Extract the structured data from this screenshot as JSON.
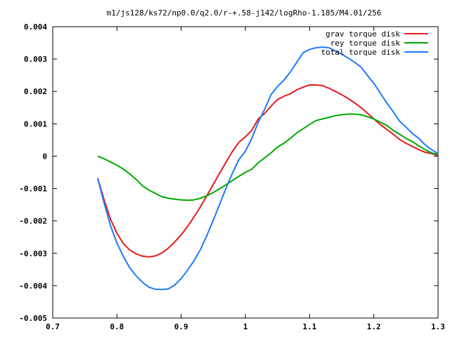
{
  "chart_data": {
    "type": "line",
    "title": "m1/js128/ks72/np0.0/q2.0/r-+.58-j142/logRho-1.185/M4.01/256",
    "xlabel": "",
    "ylabel": "",
    "xlim": [
      0.7,
      1.3
    ],
    "ylim": [
      -0.005,
      0.004
    ],
    "x_ticks": [
      "0.7",
      "0.8",
      "0.9",
      "1",
      "1.1",
      "1.2",
      "1.3"
    ],
    "y_ticks": [
      "0.004",
      "0.003",
      "0.002",
      "0.001",
      "0",
      "-0.001",
      "-0.002",
      "-0.003",
      "-0.004",
      "-0.005"
    ],
    "grid": false,
    "legend_position": "top-right",
    "series": [
      {
        "name": "grav torque disk",
        "color": "#e41a1c",
        "points": [
          [
            0.77,
            -0.00068
          ],
          [
            0.78,
            -0.00135
          ],
          [
            0.79,
            -0.00195
          ],
          [
            0.8,
            -0.00238
          ],
          [
            0.81,
            -0.0027
          ],
          [
            0.82,
            -0.0029
          ],
          [
            0.83,
            -0.00302
          ],
          [
            0.84,
            -0.00309
          ],
          [
            0.85,
            -0.00311
          ],
          [
            0.86,
            -0.00308
          ],
          [
            0.87,
            -0.00299
          ],
          [
            0.88,
            -0.00284
          ],
          [
            0.89,
            -0.00265
          ],
          [
            0.9,
            -0.00243
          ],
          [
            0.91,
            -0.00217
          ],
          [
            0.92,
            -0.00188
          ],
          [
            0.93,
            -0.00156
          ],
          [
            0.94,
            -0.00122
          ],
          [
            0.95,
            -0.00087
          ],
          [
            0.96,
            -0.00052
          ],
          [
            0.97,
            -0.00018
          ],
          [
            0.98,
            0.00015
          ],
          [
            0.99,
            0.00043
          ],
          [
            1.0,
            0.0006
          ],
          [
            1.01,
            0.0008
          ],
          [
            1.02,
            0.00115
          ],
          [
            1.03,
            0.00132
          ],
          [
            1.04,
            0.00155
          ],
          [
            1.05,
            0.00175
          ],
          [
            1.06,
            0.00185
          ],
          [
            1.07,
            0.00193
          ],
          [
            1.08,
            0.00205
          ],
          [
            1.09,
            0.00213
          ],
          [
            1.1,
            0.0022
          ],
          [
            1.11,
            0.0022
          ],
          [
            1.12,
            0.00218
          ],
          [
            1.13,
            0.0021
          ],
          [
            1.14,
            0.002
          ],
          [
            1.15,
            0.0019
          ],
          [
            1.16,
            0.00178
          ],
          [
            1.17,
            0.00165
          ],
          [
            1.18,
            0.0015
          ],
          [
            1.19,
            0.00133
          ],
          [
            1.2,
            0.00115
          ],
          [
            1.21,
            0.00098
          ],
          [
            1.22,
            0.00083
          ],
          [
            1.23,
            0.00068
          ],
          [
            1.24,
            0.00052
          ],
          [
            1.25,
            0.0004
          ],
          [
            1.26,
            0.0003
          ],
          [
            1.27,
            0.0002
          ],
          [
            1.28,
            0.00012
          ],
          [
            1.29,
            8e-05
          ],
          [
            1.3,
            2e-05
          ]
        ]
      },
      {
        "name": "rey torque disk",
        "color": "#00aa00",
        "points": [
          [
            0.77,
            0.0
          ],
          [
            0.78,
            -8e-05
          ],
          [
            0.79,
            -0.00018
          ],
          [
            0.8,
            -0.00028
          ],
          [
            0.81,
            -0.0004
          ],
          [
            0.82,
            -0.00055
          ],
          [
            0.83,
            -0.00072
          ],
          [
            0.84,
            -0.00092
          ],
          [
            0.85,
            -0.00105
          ],
          [
            0.86,
            -0.00115
          ],
          [
            0.87,
            -0.00125
          ],
          [
            0.88,
            -0.0013
          ],
          [
            0.89,
            -0.00133
          ],
          [
            0.9,
            -0.00135
          ],
          [
            0.91,
            -0.00136
          ],
          [
            0.92,
            -0.00135
          ],
          [
            0.93,
            -0.0013
          ],
          [
            0.94,
            -0.00122
          ],
          [
            0.95,
            -0.00112
          ],
          [
            0.96,
            -0.001
          ],
          [
            0.97,
            -0.00088
          ],
          [
            0.98,
            -0.00075
          ],
          [
            0.99,
            -0.00062
          ],
          [
            1.0,
            -0.0005
          ],
          [
            1.01,
            -0.0004
          ],
          [
            1.02,
            -0.0002
          ],
          [
            1.03,
            -5e-05
          ],
          [
            1.04,
            0.0001
          ],
          [
            1.05,
            0.00028
          ],
          [
            1.06,
            0.0004
          ],
          [
            1.07,
            0.00055
          ],
          [
            1.08,
            0.00072
          ],
          [
            1.09,
            0.00085
          ],
          [
            1.1,
            0.00098
          ],
          [
            1.11,
            0.0011
          ],
          [
            1.12,
            0.00115
          ],
          [
            1.13,
            0.0012
          ],
          [
            1.14,
            0.00125
          ],
          [
            1.15,
            0.00128
          ],
          [
            1.16,
            0.0013
          ],
          [
            1.17,
            0.0013
          ],
          [
            1.18,
            0.00128
          ],
          [
            1.19,
            0.00122
          ],
          [
            1.2,
            0.00115
          ],
          [
            1.21,
            0.00105
          ],
          [
            1.22,
            0.00095
          ],
          [
            1.23,
            0.0008
          ],
          [
            1.24,
            0.00068
          ],
          [
            1.25,
            0.00055
          ],
          [
            1.26,
            0.00045
          ],
          [
            1.27,
            0.00032
          ],
          [
            1.28,
            0.0002
          ],
          [
            1.29,
            0.0001
          ],
          [
            1.3,
            5e-05
          ]
        ]
      },
      {
        "name": "total torque disk",
        "color": "#1f78ff",
        "points": [
          [
            0.77,
            -0.00068
          ],
          [
            0.78,
            -0.00145
          ],
          [
            0.79,
            -0.00215
          ],
          [
            0.8,
            -0.00268
          ],
          [
            0.81,
            -0.0031
          ],
          [
            0.82,
            -0.00345
          ],
          [
            0.83,
            -0.0037
          ],
          [
            0.84,
            -0.0039
          ],
          [
            0.85,
            -0.00405
          ],
          [
            0.86,
            -0.00411
          ],
          [
            0.87,
            -0.00412
          ],
          [
            0.88,
            -0.0041
          ],
          [
            0.89,
            -0.00398
          ],
          [
            0.9,
            -0.00378
          ],
          [
            0.91,
            -0.00352
          ],
          [
            0.92,
            -0.00323
          ],
          [
            0.93,
            -0.00288
          ],
          [
            0.94,
            -0.00245
          ],
          [
            0.95,
            -0.00198
          ],
          [
            0.96,
            -0.00148
          ],
          [
            0.97,
            -0.00098
          ],
          [
            0.98,
            -0.00052
          ],
          [
            0.99,
            -0.0001
          ],
          [
            1.0,
            0.00015
          ],
          [
            1.01,
            0.00055
          ],
          [
            1.02,
            0.00105
          ],
          [
            1.03,
            0.00145
          ],
          [
            1.04,
            0.0019
          ],
          [
            1.05,
            0.00215
          ],
          [
            1.06,
            0.00235
          ],
          [
            1.07,
            0.0026
          ],
          [
            1.08,
            0.0029
          ],
          [
            1.09,
            0.0032
          ],
          [
            1.1,
            0.0033
          ],
          [
            1.11,
            0.00335
          ],
          [
            1.12,
            0.00337
          ],
          [
            1.13,
            0.00335
          ],
          [
            1.14,
            0.00325
          ],
          [
            1.15,
            0.00315
          ],
          [
            1.16,
            0.00303
          ],
          [
            1.17,
            0.0029
          ],
          [
            1.18,
            0.00275
          ],
          [
            1.19,
            0.0025
          ],
          [
            1.2,
            0.00225
          ],
          [
            1.21,
            0.00195
          ],
          [
            1.22,
            0.00165
          ],
          [
            1.23,
            0.00138
          ],
          [
            1.24,
            0.00108
          ],
          [
            1.25,
            0.0009
          ],
          [
            1.26,
            0.0007
          ],
          [
            1.27,
            0.00055
          ],
          [
            1.28,
            0.00035
          ],
          [
            1.29,
            0.0002
          ],
          [
            1.3,
            8e-05
          ]
        ]
      }
    ]
  }
}
